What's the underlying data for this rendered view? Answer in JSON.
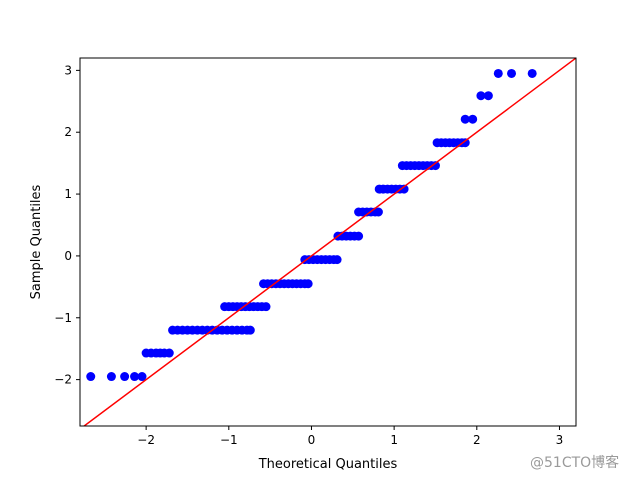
{
  "chart_data": {
    "type": "scatter",
    "xlabel": "Theoretical Quantiles",
    "ylabel": "Sample Quantiles",
    "xlim": [
      -2.8,
      3.2
    ],
    "ylim": [
      -2.75,
      3.2
    ],
    "xticks": [
      -2,
      -1,
      0,
      1,
      2,
      3
    ],
    "yticks": [
      -2,
      -1,
      0,
      1,
      2,
      3
    ],
    "xtick_labels": [
      "−2",
      "−1",
      "0",
      "1",
      "2",
      "3"
    ],
    "ytick_labels": [
      "−2",
      "−1",
      "0",
      "1",
      "2",
      "3"
    ],
    "grid": false,
    "point_color": "#0000ff",
    "line_color": "#ff0000",
    "reference_line": {
      "slope": 1,
      "intercept": 0
    },
    "series": [
      {
        "points": [
          [
            -2.67,
            -1.95
          ],
          [
            -2.42,
            -1.95
          ],
          [
            -2.26,
            -1.95
          ],
          [
            -2.14,
            -1.95
          ],
          [
            -2.05,
            -1.95
          ],
          [
            -2.0,
            -1.57
          ],
          [
            -1.94,
            -1.57
          ],
          [
            -1.88,
            -1.57
          ],
          [
            -1.83,
            -1.57
          ],
          [
            -1.78,
            -1.57
          ],
          [
            -1.72,
            -1.57
          ],
          [
            -1.68,
            -1.2
          ],
          [
            -1.62,
            -1.2
          ],
          [
            -1.56,
            -1.2
          ],
          [
            -1.5,
            -1.2
          ],
          [
            -1.44,
            -1.2
          ],
          [
            -1.38,
            -1.2
          ],
          [
            -1.32,
            -1.2
          ],
          [
            -1.26,
            -1.2
          ],
          [
            -1.2,
            -1.2
          ],
          [
            -1.14,
            -1.2
          ],
          [
            -1.08,
            -1.2
          ],
          [
            -1.02,
            -1.2
          ],
          [
            -0.96,
            -1.2
          ],
          [
            -0.9,
            -1.2
          ],
          [
            -0.84,
            -1.2
          ],
          [
            -0.78,
            -1.2
          ],
          [
            -0.74,
            -1.2
          ],
          [
            -1.05,
            -0.82
          ],
          [
            -1.0,
            -0.82
          ],
          [
            -0.95,
            -0.82
          ],
          [
            -0.9,
            -0.82
          ],
          [
            -0.85,
            -0.82
          ],
          [
            -0.8,
            -0.82
          ],
          [
            -0.75,
            -0.82
          ],
          [
            -0.7,
            -0.82
          ],
          [
            -0.65,
            -0.82
          ],
          [
            -0.6,
            -0.82
          ],
          [
            -0.55,
            -0.82
          ],
          [
            -0.58,
            -0.45
          ],
          [
            -0.53,
            -0.45
          ],
          [
            -0.48,
            -0.45
          ],
          [
            -0.43,
            -0.45
          ],
          [
            -0.38,
            -0.45
          ],
          [
            -0.33,
            -0.45
          ],
          [
            -0.28,
            -0.45
          ],
          [
            -0.23,
            -0.45
          ],
          [
            -0.18,
            -0.45
          ],
          [
            -0.13,
            -0.45
          ],
          [
            -0.08,
            -0.45
          ],
          [
            -0.04,
            -0.45
          ],
          [
            -0.08,
            -0.06
          ],
          [
            -0.03,
            -0.06
          ],
          [
            0.02,
            -0.06
          ],
          [
            0.07,
            -0.06
          ],
          [
            0.12,
            -0.06
          ],
          [
            0.17,
            -0.06
          ],
          [
            0.22,
            -0.06
          ],
          [
            0.27,
            -0.06
          ],
          [
            0.31,
            -0.06
          ],
          [
            0.32,
            0.32
          ],
          [
            0.37,
            0.32
          ],
          [
            0.42,
            0.32
          ],
          [
            0.47,
            0.32
          ],
          [
            0.52,
            0.32
          ],
          [
            0.57,
            0.32
          ],
          [
            0.57,
            0.71
          ],
          [
            0.62,
            0.71
          ],
          [
            0.67,
            0.71
          ],
          [
            0.72,
            0.71
          ],
          [
            0.77,
            0.71
          ],
          [
            0.81,
            0.71
          ],
          [
            0.82,
            1.08
          ],
          [
            0.87,
            1.08
          ],
          [
            0.92,
            1.08
          ],
          [
            0.97,
            1.08
          ],
          [
            1.02,
            1.08
          ],
          [
            1.07,
            1.08
          ],
          [
            1.12,
            1.08
          ],
          [
            1.1,
            1.46
          ],
          [
            1.15,
            1.46
          ],
          [
            1.2,
            1.46
          ],
          [
            1.25,
            1.46
          ],
          [
            1.3,
            1.46
          ],
          [
            1.35,
            1.46
          ],
          [
            1.4,
            1.46
          ],
          [
            1.45,
            1.46
          ],
          [
            1.5,
            1.46
          ],
          [
            1.52,
            1.83
          ],
          [
            1.57,
            1.83
          ],
          [
            1.62,
            1.83
          ],
          [
            1.67,
            1.83
          ],
          [
            1.72,
            1.83
          ],
          [
            1.77,
            1.83
          ],
          [
            1.82,
            1.83
          ],
          [
            1.86,
            1.83
          ],
          [
            1.86,
            2.21
          ],
          [
            1.95,
            2.21
          ],
          [
            2.05,
            2.59
          ],
          [
            2.14,
            2.59
          ],
          [
            2.26,
            2.95
          ],
          [
            2.42,
            2.95
          ],
          [
            2.67,
            2.95
          ]
        ]
      }
    ]
  },
  "watermark": "@51CTO博客"
}
